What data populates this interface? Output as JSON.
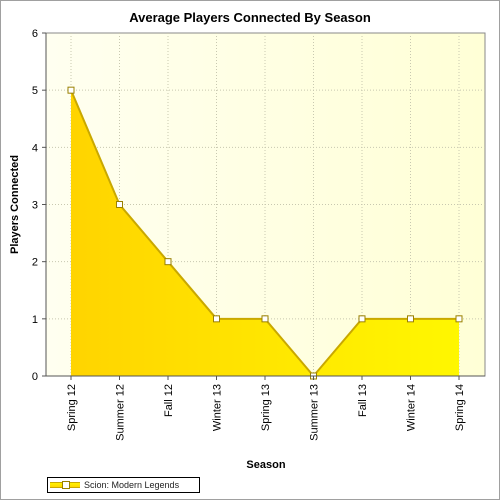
{
  "chart_data": {
    "type": "area",
    "title": "Average Players Connected By Season",
    "xlabel": "Season",
    "ylabel": "Players Connected",
    "categories": [
      "Spring 12",
      "Summer 12",
      "Fall 12",
      "Winter 13",
      "Spring 13",
      "Summer 13",
      "Fall 13",
      "Winter 14",
      "Spring 14"
    ],
    "series": [
      {
        "name": "Scion: Modern Legends",
        "values": [
          5,
          3,
          2,
          1,
          1,
          0,
          1,
          1,
          1
        ]
      }
    ],
    "ylim": [
      0,
      6
    ],
    "yticks": [
      "0",
      "1",
      "2",
      "3",
      "4",
      "5",
      "6"
    ],
    "grid": true,
    "legend": "bottom-left",
    "colors": {
      "fill_top": "#ffd600",
      "fill_bottom": "#fff200",
      "line": "#c9a800",
      "plot_bg": "#ffffe0"
    }
  }
}
